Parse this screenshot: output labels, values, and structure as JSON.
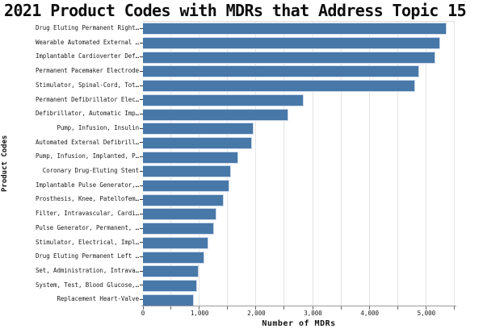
{
  "chart_data": {
    "type": "bar",
    "orientation": "horizontal",
    "title": "2021 Product Codes with MDRs that Address Topic 15",
    "xlabel": "Number of MDRs",
    "ylabel": "Product Codes",
    "xlim": [
      0,
      5500
    ],
    "xticks": [
      0,
      1000,
      2000,
      3000,
      4000,
      5000
    ],
    "xtick_labels": [
      "0",
      "1,000",
      "2,000",
      "3,000",
      "4,000",
      "5,000"
    ],
    "grid": true,
    "grid_step": 500,
    "legend": false,
    "bar_color": "#4878a8",
    "bar_edge_color": "#ccd9ec",
    "grid_color": "#e4e4e4",
    "categories": [
      "Drug Eluting Permanent Right…",
      "Wearable Automated External …",
      "Implantable Cardioverter Def…",
      "Permanent Pacemaker Electrode",
      "Stimulator, Spinal-Cord, Tot…",
      "Permanent Defibrillator Elec…",
      "Defibrillator, Automatic Imp…",
      "Pump, Infusion, Insulin",
      "Automated External Defibrill…",
      "Pump, Infusion, Implanted, P…",
      "Coronary Drug-Eluting Stent",
      "Implantable Pulse Generator,…",
      "Prosthesis, Knee, Patellofem…",
      "Filter, Intravascular, Cardi…",
      "Pulse Generator, Permanent, …",
      "Stimulator, Electrical, Impl…",
      "Drug Eluting Permanent Left …",
      "Set, Administration, Intrava…",
      "System, Test, Blood Glucose,…",
      "Replacement Heart-Valve"
    ],
    "values": [
      5360,
      5240,
      5160,
      4870,
      4800,
      2830,
      2560,
      1950,
      1920,
      1680,
      1560,
      1530,
      1420,
      1290,
      1250,
      1160,
      1080,
      990,
      950,
      900
    ]
  }
}
